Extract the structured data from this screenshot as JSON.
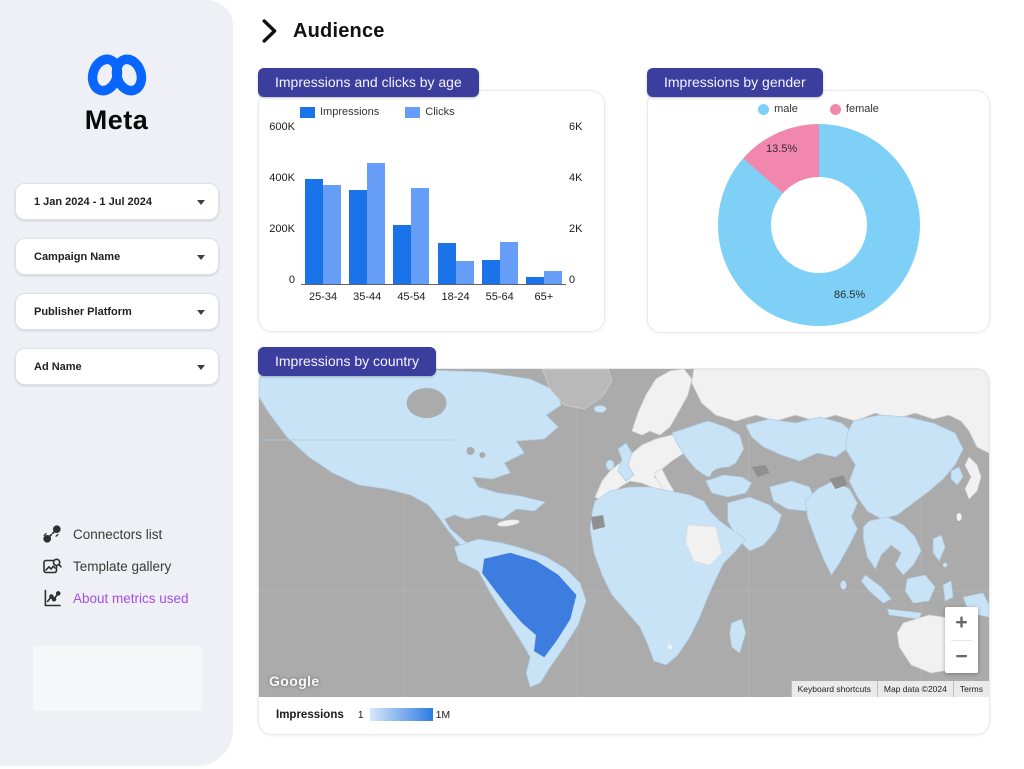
{
  "header": {
    "title": "Audience"
  },
  "sidebar": {
    "brand": "Meta",
    "filters": [
      "1 Jan 2024 - 1 Jul 2024",
      "Campaign Name",
      "Publisher Platform",
      "Ad Name"
    ],
    "links": [
      {
        "label": "Connectors list"
      },
      {
        "label": "Template gallery"
      },
      {
        "label": "About metrics used"
      }
    ]
  },
  "colors": {
    "badge": "#3c3e9e",
    "brand_blue": "#0866ff",
    "link_purple": "#a44fe0",
    "ocean": "#ababab",
    "map_nodata": "#f1f1f1"
  },
  "chart_data": [
    {
      "type": "bar",
      "title": "Impressions and clicks by age",
      "categories": [
        "25-34",
        "35-44",
        "45-54",
        "18-24",
        "55-64",
        "65+"
      ],
      "series": [
        {
          "name": "Impressions",
          "axis": "left",
          "color": "#1a73e8",
          "values": [
            410000,
            370000,
            230000,
            162000,
            95000,
            27000
          ]
        },
        {
          "name": "Clicks",
          "axis": "right",
          "color": "#669df6",
          "values": [
            3900,
            4750,
            3750,
            900,
            1650,
            500
          ]
        }
      ],
      "left_axis": {
        "max": 600000,
        "ticks": [
          "600K",
          "400K",
          "200K",
          "0"
        ]
      },
      "right_axis": {
        "max": 6000,
        "ticks": [
          "6K",
          "4K",
          "2K",
          "0"
        ]
      },
      "legend_position": "top",
      "grid": false
    },
    {
      "type": "pie",
      "donut": true,
      "title": "Impressions by gender",
      "slices": [
        {
          "label": "male",
          "value": 86.5,
          "text": "86.5%",
          "color": "#7ed0f7"
        },
        {
          "label": "female",
          "value": 13.5,
          "text": "13.5%",
          "color": "#f287ae"
        }
      ],
      "legend_position": "top"
    },
    {
      "type": "heatmap",
      "title": "Impressions by country",
      "legend": {
        "label": "Impressions",
        "min": "1",
        "max": "1M"
      },
      "scale": [
        "#d7e7fa",
        "#2e7be2"
      ],
      "highlighted_country": "Brazil",
      "country_colors": {
        "low": "#c8e2f6",
        "high": "#3d7de0",
        "no_data": "#f1f1f1"
      }
    }
  ],
  "map": {
    "logo": "Google",
    "attribution": [
      "Keyboard shortcuts",
      "Map data ©2024",
      "Terms"
    ],
    "zoom_in": "+",
    "zoom_out": "−"
  }
}
